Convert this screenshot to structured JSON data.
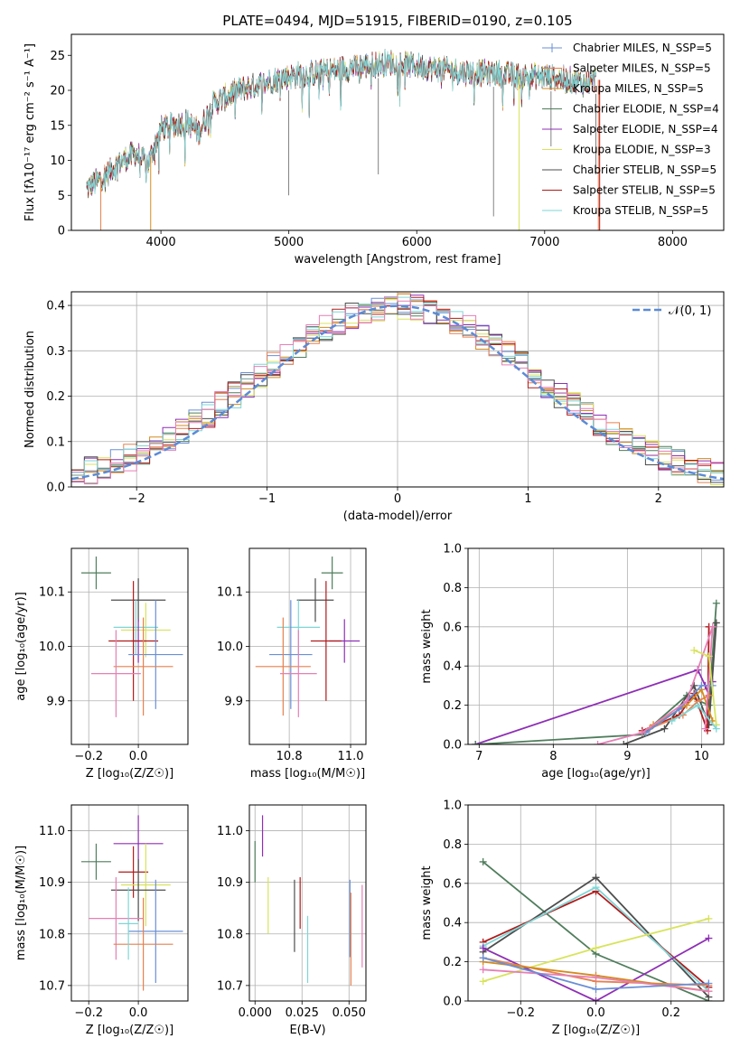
{
  "figure_title": "PLATE=0494, MJD=51915, FIBERID=0190, z=0.105",
  "colors": {
    "chabrier_miles": "#6a8fd6",
    "salpeter_miles": "#e6814f",
    "kroupa_miles": "#d38b1f",
    "chabrier_elodie": "#4f7d5c",
    "salpeter_elodie": "#8e2fb5",
    "kroupa_elodie": "#d8e35c",
    "chabrier_stelib": "#4d4d4d",
    "salpeter_stelib": "#b01a1a",
    "kroupa_stelib": "#7fd6d6",
    "pink": "#e67fb6",
    "gaussian": "#5b8bd6",
    "grid": "#b0b0b0"
  },
  "chart_data": [
    {
      "id": "spectrum",
      "type": "line",
      "xlabel": "wavelength [Angstrom, rest frame]",
      "ylabel": "Flux [fλ10⁻¹⁷ erg cm⁻² s⁻¹ A⁻¹]",
      "xlim": [
        3300,
        8400
      ],
      "ylim": [
        0,
        28
      ],
      "xticks": [
        "4000",
        "5000",
        "6000",
        "7000",
        "8000"
      ],
      "yticks": [
        "0",
        "5",
        "10",
        "15",
        "20",
        "25"
      ],
      "legend": [
        "Chabrier MILES, N_SSP=5",
        "Salpeter MILES, N_SSP=5",
        "Kroupa MILES, N_SSP=5",
        "Chabrier ELODIE, N_SSP=4",
        "Salpeter ELODIE, N_SSP=4",
        "Kroupa ELODIE, N_SSP=3",
        "Chabrier STELIB, N_SSP=5",
        "Salpeter STELIB, N_SSP=5",
        "Kroupa STELIB, N_SSP=5"
      ],
      "legend_placement": "top-right",
      "continuum": {
        "x": [
          3420,
          3500,
          3600,
          3700,
          3800,
          3900,
          3950,
          4000,
          4100,
          4200,
          4300,
          4400,
          4600,
          4800,
          5000,
          5200,
          5400,
          5600,
          5800,
          6000,
          6200,
          6400,
          6600,
          6800,
          7000,
          7200,
          7300,
          7400
        ],
        "y": [
          6,
          7,
          8.5,
          10,
          11,
          9.5,
          12,
          14.5,
          15,
          15.5,
          14,
          18,
          20,
          21,
          22,
          22.5,
          23,
          23.5,
          24,
          23.5,
          23,
          22.5,
          22.5,
          22,
          22,
          21.5,
          21,
          21.5
        ]
      }
    },
    {
      "id": "residuals",
      "type": "histogram",
      "xlabel": "(data-model)/error",
      "ylabel": "Normed distribution",
      "xlim": [
        -2.5,
        2.5
      ],
      "ylim": [
        0,
        0.43
      ],
      "xticks": [
        "−2",
        "−1",
        "0",
        "1",
        "2"
      ],
      "yticks": [
        "0.0",
        "0.1",
        "0.2",
        "0.3",
        "0.4"
      ],
      "legend": [
        "𝒩(0, 1)"
      ],
      "legend_placement": "top-right",
      "bin_width": 0.1,
      "reference_curve": "gaussian mean 0 sigma 1"
    },
    {
      "id": "z_vs_age",
      "type": "errorbar",
      "xlabel": "Z [log₁₀(Z/Z☉)]",
      "ylabel": "age  [log₁₀(age/yr)]",
      "xlim": [
        -0.27,
        0.2
      ],
      "ylim": [
        9.82,
        10.18
      ],
      "xticks": [
        "−0.2",
        "0.0"
      ],
      "yticks": [
        "9.9",
        "10.0",
        "10.1"
      ],
      "points": [
        {
          "s": "chabrier_elodie",
          "x": -0.17,
          "xe": 0.06,
          "y": 10.135,
          "ye": 0.03
        },
        {
          "s": "chabrier_stelib",
          "x": 0.0,
          "xe": 0.11,
          "y": 10.085,
          "ye": 0.04
        },
        {
          "s": "kroupa_elodie",
          "x": 0.03,
          "xe": 0.1,
          "y": 10.03,
          "ye": 0.05
        },
        {
          "s": "kroupa_stelib",
          "x": -0.01,
          "xe": 0.09,
          "y": 10.035,
          "ye": 0.05
        },
        {
          "s": "salpeter_elodie",
          "x": 0.0,
          "xe": 0.03,
          "y": 10.01,
          "ye": 0.04
        },
        {
          "s": "salpeter_stelib",
          "x": -0.02,
          "xe": 0.1,
          "y": 10.01,
          "ye": 0.11
        },
        {
          "s": "chabrier_miles",
          "x": 0.07,
          "xe": 0.11,
          "y": 9.985,
          "ye": 0.1
        },
        {
          "s": "salpeter_miles",
          "x": 0.02,
          "xe": 0.12,
          "y": 9.963,
          "ye": 0.09
        },
        {
          "s": "pink",
          "x": -0.09,
          "xe": 0.1,
          "y": 9.95,
          "ye": 0.08
        }
      ]
    },
    {
      "id": "mass_vs_age",
      "type": "errorbar",
      "xlabel": "mass [log₁₀(M/M☉)]",
      "ylabel": "",
      "xlim": [
        10.67,
        11.05
      ],
      "ylim": [
        9.82,
        10.18
      ],
      "xticks": [
        "10.8",
        "11.0"
      ],
      "yticks": [
        "9.9",
        "10.0",
        "10.1"
      ],
      "points": [
        {
          "s": "chabrier_elodie",
          "x": 10.94,
          "xe": 0.035,
          "y": 10.135,
          "ye": 0.03
        },
        {
          "s": "chabrier_stelib",
          "x": 10.885,
          "xe": 0.06,
          "y": 10.085,
          "ye": 0.04
        },
        {
          "s": "kroupa_stelib",
          "x": 10.83,
          "xe": 0.07,
          "y": 10.035,
          "ye": 0.05
        },
        {
          "s": "salpeter_elodie",
          "x": 10.98,
          "xe": 0.05,
          "y": 10.01,
          "ye": 0.04
        },
        {
          "s": "salpeter_stelib",
          "x": 10.92,
          "xe": 0.05,
          "y": 10.01,
          "ye": 0.11
        },
        {
          "s": "chabrier_miles",
          "x": 10.805,
          "xe": 0.07,
          "y": 9.985,
          "ye": 0.1
        },
        {
          "s": "salpeter_miles",
          "x": 10.78,
          "xe": 0.09,
          "y": 9.963,
          "ye": 0.09
        },
        {
          "s": "pink",
          "x": 10.83,
          "xe": 0.06,
          "y": 9.95,
          "ye": 0.08
        }
      ]
    },
    {
      "id": "age_weights",
      "type": "line",
      "xlabel": "age  [log₁₀(age/yr)]",
      "ylabel": "mass weight",
      "xlim": [
        6.85,
        10.3
      ],
      "ylim": [
        0,
        1.0
      ],
      "xticks": [
        "7",
        "8",
        "9",
        "10"
      ],
      "yticks": [
        "0.0",
        "0.2",
        "0.4",
        "0.6",
        "0.8",
        "1.0"
      ],
      "series": [
        {
          "s": "salpeter_elodie",
          "x": [
            6.95,
            9.95,
            10.05,
            10.1,
            10.15
          ],
          "y": [
            0.0,
            0.38,
            0.3,
            0.25,
            0.32
          ]
        },
        {
          "s": "chabrier_elodie",
          "x": [
            6.95,
            9.2,
            9.8,
            10.1,
            10.2
          ],
          "y": [
            0.0,
            0.05,
            0.25,
            0.2,
            0.72
          ]
        },
        {
          "s": "chabrier_stelib",
          "x": [
            8.95,
            9.5,
            9.9,
            10.1,
            10.2
          ],
          "y": [
            0.0,
            0.08,
            0.3,
            0.1,
            0.62
          ]
        },
        {
          "s": "salpeter_stelib",
          "x": [
            9.2,
            9.7,
            9.9,
            10.08,
            10.1
          ],
          "y": [
            0.07,
            0.15,
            0.26,
            0.07,
            0.6
          ]
        },
        {
          "s": "salpeter_miles",
          "x": [
            9.3,
            9.75,
            9.95,
            10.1
          ],
          "y": [
            0.08,
            0.15,
            0.22,
            0.25
          ]
        },
        {
          "s": "kroupa_miles",
          "x": [
            9.35,
            9.8,
            10.0,
            10.15
          ],
          "y": [
            0.1,
            0.2,
            0.28,
            0.12
          ]
        },
        {
          "s": "chabrier_miles",
          "x": [
            9.25,
            9.7,
            10.0,
            10.15
          ],
          "y": [
            0.06,
            0.18,
            0.3,
            0.3
          ]
        },
        {
          "s": "pink",
          "x": [
            8.6,
            9.2,
            9.8,
            10.15,
            10.05
          ],
          "y": [
            0.0,
            0.06,
            0.22,
            0.6,
            0.08
          ]
        },
        {
          "s": "kroupa_elodie",
          "x": [
            9.9,
            10.1,
            10.2
          ],
          "y": [
            0.48,
            0.45,
            0.1
          ]
        },
        {
          "s": "kroupa_stelib",
          "x": [
            9.6,
            9.95,
            10.2
          ],
          "y": [
            0.12,
            0.2,
            0.08
          ]
        }
      ]
    },
    {
      "id": "z_vs_mass",
      "type": "errorbar",
      "xlabel": "Z [log₁₀(Z/Z☉)]",
      "ylabel": "mass [log₁₀(M/M☉)]",
      "xlim": [
        -0.27,
        0.2
      ],
      "ylim": [
        10.67,
        11.05
      ],
      "xticks": [
        "−0.2",
        "0.0"
      ],
      "yticks": [
        "10.7",
        "10.8",
        "10.9",
        "11.0"
      ],
      "points": [
        {
          "s": "chabrier_elodie",
          "x": -0.17,
          "xe": 0.06,
          "y": 10.94,
          "ye": 0.035
        },
        {
          "s": "salpeter_elodie",
          "x": 0.0,
          "xe": 0.1,
          "y": 10.975,
          "ye": 0.055
        },
        {
          "s": "salpeter_stelib",
          "x": -0.02,
          "xe": 0.06,
          "y": 10.92,
          "ye": 0.05
        },
        {
          "s": "kroupa_elodie",
          "x": 0.03,
          "xe": 0.1,
          "y": 10.895,
          "ye": 0.08
        },
        {
          "s": "chabrier_stelib",
          "x": 0.0,
          "xe": 0.11,
          "y": 10.885,
          "ye": 0.06
        },
        {
          "s": "pink",
          "x": -0.09,
          "xe": 0.11,
          "y": 10.83,
          "ye": 0.08
        },
        {
          "s": "chabrier_miles",
          "x": 0.07,
          "xe": 0.11,
          "y": 10.805,
          "ye": 0.1
        },
        {
          "s": "salpeter_miles",
          "x": 0.02,
          "xe": 0.12,
          "y": 10.78,
          "ye": 0.09
        },
        {
          "s": "kroupa_stelib",
          "x": -0.04,
          "xe": 0.04,
          "y": 10.82,
          "ye": 0.07
        }
      ]
    },
    {
      "id": "ebv_vs_mass",
      "type": "errorbar",
      "xlabel": "E(B-V)",
      "ylabel": "",
      "xlim": [
        -0.003,
        0.059
      ],
      "ylim": [
        10.67,
        11.05
      ],
      "xticks": [
        "0.000",
        "0.025",
        "0.050"
      ],
      "yticks": [
        "10.7",
        "10.8",
        "10.9",
        "11.0"
      ],
      "points": [
        {
          "s": "chabrier_elodie",
          "x": 0.0,
          "xe": 0,
          "y": 10.94,
          "ye": 0.04
        },
        {
          "s": "salpeter_elodie",
          "x": 0.004,
          "xe": 0,
          "y": 10.99,
          "ye": 0.04
        },
        {
          "s": "kroupa_elodie",
          "x": 0.007,
          "xe": 0,
          "y": 10.855,
          "ye": 0.055
        },
        {
          "s": "chabrier_stelib",
          "x": 0.021,
          "xe": 0,
          "y": 10.835,
          "ye": 0.07
        },
        {
          "s": "salpeter_stelib",
          "x": 0.024,
          "xe": 0,
          "y": 10.86,
          "ye": 0.05
        },
        {
          "s": "kroupa_stelib",
          "x": 0.028,
          "xe": 0,
          "y": 10.77,
          "ye": 0.065
        },
        {
          "s": "chabrier_miles",
          "x": 0.0505,
          "xe": 0,
          "y": 10.83,
          "ye": 0.075
        },
        {
          "s": "salpeter_miles",
          "x": 0.051,
          "xe": 0,
          "y": 10.79,
          "ye": 0.09
        },
        {
          "s": "pink",
          "x": 0.057,
          "xe": 0,
          "y": 10.815,
          "ye": 0.08
        }
      ]
    },
    {
      "id": "z_weights",
      "type": "line",
      "xlabel": "Z [log₁₀(Z/Z☉)]",
      "ylabel": "mass weight",
      "xlim": [
        -0.34,
        0.34
      ],
      "ylim": [
        0,
        1.0
      ],
      "xticks": [
        "−0.2",
        "0.0",
        "0.2"
      ],
      "yticks": [
        "0.0",
        "0.2",
        "0.4",
        "0.6",
        "0.8",
        "1.0"
      ],
      "series": [
        {
          "s": "chabrier_elodie",
          "x": [
            -0.3,
            0.0,
            0.3
          ],
          "y": [
            0.71,
            0.24,
            0.0
          ]
        },
        {
          "s": "chabrier_stelib",
          "x": [
            -0.3,
            0.0,
            0.3
          ],
          "y": [
            0.25,
            0.63,
            0.02
          ]
        },
        {
          "s": "salpeter_stelib",
          "x": [
            -0.3,
            0.0,
            0.3
          ],
          "y": [
            0.3,
            0.56,
            0.07
          ]
        },
        {
          "s": "kroupa_stelib",
          "x": [
            -0.3,
            0.0,
            0.3
          ],
          "y": [
            0.28,
            0.58,
            0.05
          ]
        },
        {
          "s": "kroupa_elodie",
          "x": [
            -0.3,
            0.0,
            0.3
          ],
          "y": [
            0.1,
            0.27,
            0.42
          ]
        },
        {
          "s": "salpeter_elodie",
          "x": [
            -0.3,
            0.0,
            0.3
          ],
          "y": [
            0.27,
            0.0,
            0.32
          ]
        },
        {
          "s": "salpeter_miles",
          "x": [
            -0.3,
            0.0,
            0.3
          ],
          "y": [
            0.22,
            0.1,
            0.08
          ]
        },
        {
          "s": "kroupa_miles",
          "x": [
            -0.3,
            0.0,
            0.3
          ],
          "y": [
            0.2,
            0.13,
            0.05
          ]
        },
        {
          "s": "pink",
          "x": [
            -0.3,
            0.0,
            0.3
          ],
          "y": [
            0.16,
            0.12,
            0.05
          ]
        },
        {
          "s": "chabrier_miles",
          "x": [
            -0.3,
            0.0,
            0.3
          ],
          "y": [
            0.22,
            0.06,
            0.09
          ]
        }
      ]
    }
  ]
}
